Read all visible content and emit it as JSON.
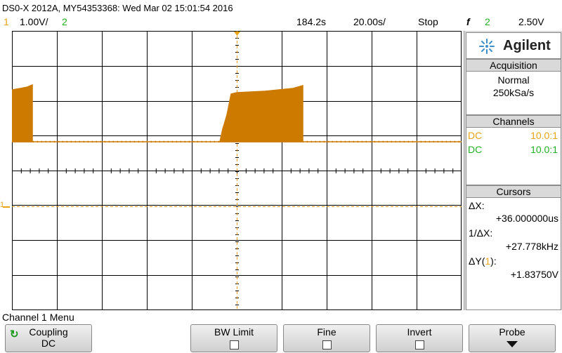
{
  "status": {
    "model_line": "DS0-X 2012A, MY54353368: Wed Mar 02 15:01:54 2016",
    "ch1_index": "1",
    "ch1_scale": "1.00V/",
    "ch2_index": "2",
    "horizontal_delay": "184.2s",
    "time_per_div": "20.00s/",
    "run_state": "Stop",
    "trigger_symbol": "f",
    "trigger_source": "2",
    "trigger_level": "2.50V"
  },
  "brand": {
    "name": "Agilent",
    "logo_icon": "agilent-spark-icon"
  },
  "acquisition": {
    "title": "Acquisition",
    "mode": "Normal",
    "rate": "250kSa/s"
  },
  "channels": {
    "title": "Channels",
    "rows": [
      {
        "coupling": "DC",
        "probe": "10.0:1",
        "color": "#e8a317"
      },
      {
        "coupling": "DC",
        "probe": "10.0:1",
        "color": "#22b022"
      }
    ]
  },
  "cursors": {
    "title": "Cursors",
    "dx_label": "ΔX:",
    "dx_value": "+36.000000us",
    "inv_dx_label": "1/ΔX:",
    "inv_dx_value": "+27.778kHz",
    "dy_label_pre": "ΔY(",
    "dy_channel": "1",
    "dy_label_post": "):",
    "dy_value": "+1.83750V"
  },
  "menu": {
    "title": "Channel 1 Menu",
    "softkeys": [
      {
        "label": "Coupling",
        "value": "DC"
      },
      {
        "label": "BW Limit"
      },
      {
        "label": "Fine"
      },
      {
        "label": "Invert"
      },
      {
        "label": "Probe"
      }
    ]
  },
  "colors": {
    "ch1": "#e8a317",
    "ch2": "#22b022",
    "trace_fill": "#cc7a00",
    "grid": "#000000"
  },
  "ground_marker": {
    "label": "1"
  }
}
